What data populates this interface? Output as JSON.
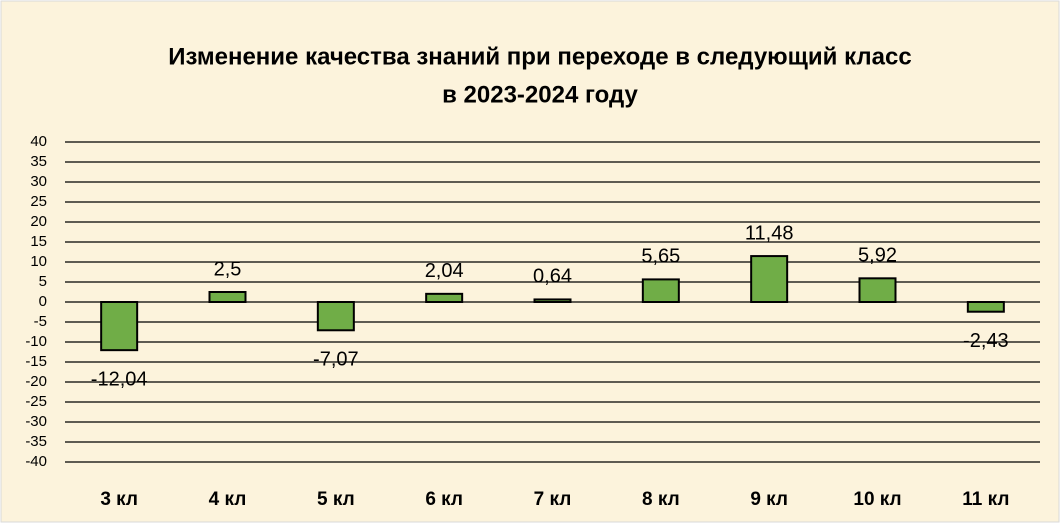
{
  "chart_data": {
    "type": "bar",
    "title": [
      "Изменение качества знаний при переходе в следующий класс",
      "в 2023-2024 году"
    ],
    "categories": [
      "3 кл",
      "4 кл",
      "5 кл",
      "6 кл",
      "7 кл",
      "8 кл",
      "9 кл",
      "10 кл",
      "11 кл"
    ],
    "values": [
      -12.04,
      2.5,
      -7.07,
      2.04,
      0.64,
      5.65,
      11.48,
      5.92,
      -2.43
    ],
    "value_labels": [
      "-12,04",
      "2,5",
      "-7,07",
      "2,04",
      "0,64",
      "5,65",
      "11,48",
      "5,92",
      "-2,43"
    ],
    "color": "#70ad47",
    "ylim": [
      -40,
      40
    ],
    "yticks": [
      -40,
      -35,
      -30,
      -25,
      -20,
      -15,
      -10,
      -5,
      0,
      5,
      10,
      15,
      20,
      25,
      30,
      35,
      40
    ],
    "grid": true
  }
}
